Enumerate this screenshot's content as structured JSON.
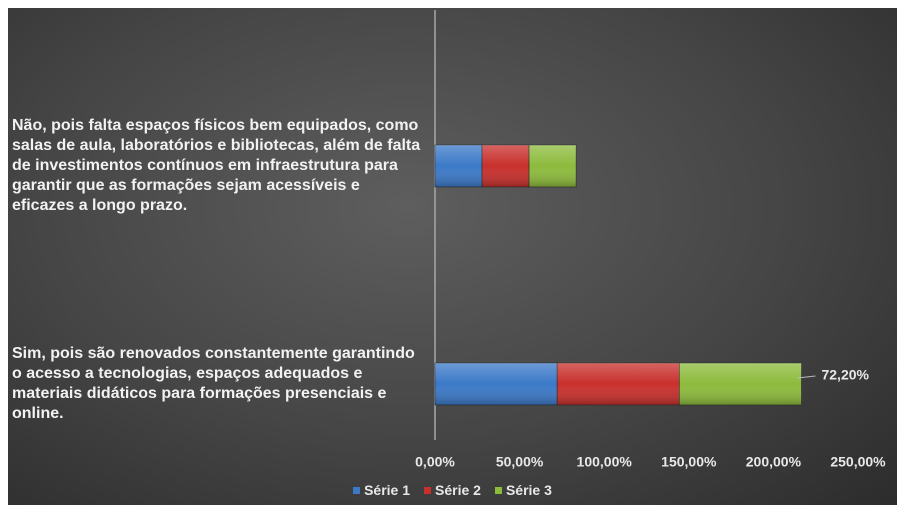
{
  "chart_data": {
    "type": "stacked_barh",
    "categories": [
      "Não, pois falta espaços físicos bem equipados, como salas de aula, laboratórios e bibliotecas, além de falta de investimentos contínuos em infraestrutura para garantir que as formações sejam acessíveis e eficazes a longo prazo.",
      "Sim, pois são renovados constantemente garantindo o acesso a tecnologias, espaços adequados e materiais didáticos para formações presenciais e online."
    ],
    "series": [
      {
        "name": "Série 1",
        "color": "#3b79c8",
        "values": [
          27.8,
          72.2
        ]
      },
      {
        "name": "Série 2",
        "color": "#c8302c",
        "values": [
          27.8,
          72.2
        ]
      },
      {
        "name": "Série 3",
        "color": "#8dbb3c",
        "values": [
          27.8,
          72.2
        ],
        "value_labels": [
          null,
          "72,20%"
        ]
      }
    ],
    "xlim": [
      0,
      250
    ],
    "xticks": [
      {
        "value": 0,
        "label": "0,00%"
      },
      {
        "value": 50,
        "label": "50,00%"
      },
      {
        "value": 100,
        "label": "100,00%"
      },
      {
        "value": 150,
        "label": "150,00%"
      },
      {
        "value": 200,
        "label": "200,00%"
      },
      {
        "value": 250,
        "label": "250,00%"
      }
    ],
    "legend": "bottom"
  }
}
